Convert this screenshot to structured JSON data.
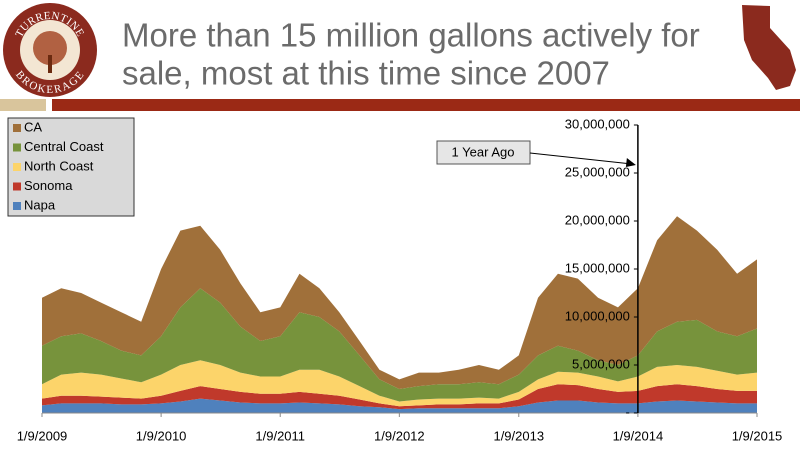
{
  "chart_data": {
    "type": "stacked_area",
    "title": [
      "More than 15 million gallons actively for",
      "sale, most at this time since 2007"
    ],
    "logo": {
      "top": "TURRENTINE",
      "bottom": "BROKERAGE"
    },
    "x": [
      "2009-01-09",
      "2009-03-09",
      "2009-05-09",
      "2009-07-09",
      "2009-09-09",
      "2009-11-09",
      "2010-01-09",
      "2010-03-09",
      "2010-05-09",
      "2010-07-09",
      "2010-09-09",
      "2010-11-09",
      "2011-01-09",
      "2011-03-09",
      "2011-05-09",
      "2011-07-09",
      "2011-09-09",
      "2011-11-09",
      "2012-01-09",
      "2012-03-09",
      "2012-05-09",
      "2012-07-09",
      "2012-09-09",
      "2012-11-09",
      "2013-01-09",
      "2013-03-09",
      "2013-05-09",
      "2013-07-09",
      "2013-09-09",
      "2013-11-09",
      "2014-01-09",
      "2014-03-09",
      "2014-05-09",
      "2014-07-09",
      "2014-09-09",
      "2014-11-09",
      "2015-01-09"
    ],
    "series": [
      {
        "name": "CA",
        "color": "#a0703a",
        "values": [
          5000000,
          5000000,
          4200000,
          4000000,
          4000000,
          3500000,
          7000000,
          8000000,
          6500000,
          5500000,
          4500000,
          3000000,
          3000000,
          4000000,
          3000000,
          2000000,
          1500000,
          1000000,
          1000000,
          1400000,
          1200000,
          1500000,
          1800000,
          1500000,
          2000000,
          6000000,
          7500000,
          7500000,
          6500000,
          6000000,
          7000000,
          9500000,
          11000000,
          9300000,
          8500000,
          6500000,
          7200000
        ]
      },
      {
        "name": "Central Coast",
        "color": "#77933c",
        "values": [
          4000000,
          4000000,
          4100000,
          3500000,
          2900000,
          2800000,
          4000000,
          6000000,
          7500000,
          6500000,
          4800000,
          3700000,
          4200000,
          6000000,
          5500000,
          4700000,
          3200000,
          1700000,
          1300000,
          1400000,
          1500000,
          1500000,
          1600000,
          1500000,
          1800000,
          2500000,
          2700000,
          2300000,
          1700000,
          1700000,
          2200000,
          3700000,
          4500000,
          4900000,
          4100000,
          4000000,
          4600000
        ]
      },
      {
        "name": "North Coast",
        "color": "#fcd46a",
        "values": [
          1500000,
          2200000,
          2400000,
          2300000,
          2000000,
          1700000,
          2200000,
          2700000,
          2700000,
          2500000,
          2000000,
          1800000,
          1800000,
          2300000,
          2500000,
          2000000,
          1400000,
          800000,
          500000,
          600000,
          600000,
          600000,
          600000,
          500000,
          800000,
          1000000,
          1300000,
          1300000,
          1300000,
          1100000,
          1500000,
          2000000,
          2000000,
          2000000,
          1900000,
          1700000,
          1900000
        ]
      },
      {
        "name": "Sonoma",
        "color": "#c0392b",
        "values": [
          700000,
          800000,
          800000,
          700000,
          700000,
          600000,
          800000,
          1100000,
          1300000,
          1200000,
          1100000,
          1000000,
          1000000,
          1100000,
          1000000,
          900000,
          700000,
          400000,
          300000,
          300000,
          400000,
          400000,
          500000,
          500000,
          700000,
          1400000,
          1700000,
          1600000,
          1400000,
          1200000,
          1300000,
          1600000,
          1700000,
          1600000,
          1400000,
          1300000,
          1300000
        ]
      },
      {
        "name": "Napa",
        "color": "#4f81bd",
        "values": [
          800000,
          1000000,
          1000000,
          1000000,
          900000,
          900000,
          1000000,
          1200000,
          1500000,
          1300000,
          1100000,
          1000000,
          1000000,
          1100000,
          1000000,
          900000,
          700000,
          600000,
          400000,
          500000,
          500000,
          500000,
          500000,
          500000,
          700000,
          1100000,
          1300000,
          1300000,
          1100000,
          1000000,
          1000000,
          1200000,
          1300000,
          1200000,
          1100000,
          1000000,
          1000000
        ]
      }
    ],
    "xlim": [
      "2009-01-09",
      "2015-01-09"
    ],
    "xticks": [
      {
        "value": "2009-01-09",
        "label": "1/9/2009"
      },
      {
        "value": "2010-01-09",
        "label": "1/9/2010"
      },
      {
        "value": "2011-01-09",
        "label": "1/9/2011"
      },
      {
        "value": "2012-01-09",
        "label": "1/9/2012"
      },
      {
        "value": "2013-01-09",
        "label": "1/9/2013"
      },
      {
        "value": "2014-01-09",
        "label": "1/9/2014"
      },
      {
        "value": "2015-01-09",
        "label": "1/9/2015"
      }
    ],
    "ylim": [
      0,
      30000000
    ],
    "yticks": [
      {
        "value": 0,
        "label": "-"
      },
      {
        "value": 5000000,
        "label": "5,000,000"
      },
      {
        "value": 10000000,
        "label": "10,000,000"
      },
      {
        "value": 15000000,
        "label": "15,000,000"
      },
      {
        "value": 20000000,
        "label": "20,000,000"
      },
      {
        "value": 25000000,
        "label": "25,000,000"
      },
      {
        "value": 30000000,
        "label": "30,000,000"
      }
    ],
    "annotation": {
      "text": "1 Year Ago",
      "x": "2014-01-09"
    },
    "legend": "top-left",
    "grid": false
  }
}
